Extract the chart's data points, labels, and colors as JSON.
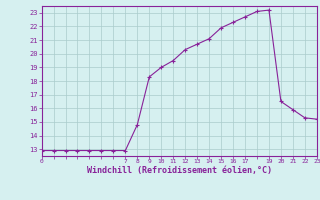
{
  "x": [
    0,
    1,
    2,
    3,
    4,
    5,
    6,
    7,
    8,
    9,
    10,
    11,
    12,
    13,
    14,
    15,
    16,
    17,
    18,
    19,
    20,
    21,
    22,
    23
  ],
  "y": [
    12.9,
    12.9,
    12.9,
    12.9,
    12.9,
    12.9,
    12.9,
    12.9,
    14.8,
    18.3,
    19.0,
    19.5,
    20.3,
    20.7,
    21.1,
    21.9,
    22.3,
    22.7,
    23.1,
    23.2,
    16.5,
    15.9,
    15.3,
    15.2
  ],
  "line_color": "#882299",
  "marker": "+",
  "marker_color": "#882299",
  "background_color": "#d6f0f0",
  "grid_color": "#aacccc",
  "xlabel": "Windchill (Refroidissement éolien,°C)",
  "xlabel_color": "#882299",
  "ylabel_ticks": [
    13,
    14,
    15,
    16,
    17,
    18,
    19,
    20,
    21,
    22,
    23
  ],
  "xtick_labels": [
    "0",
    "",
    "",
    "",
    "",
    "",
    "",
    "7",
    "8",
    "9",
    "10",
    "11",
    "12",
    "13",
    "14",
    "15",
    "16",
    "17",
    "",
    "19",
    "20",
    "21",
    "22",
    "23"
  ],
  "xlim": [
    0,
    23
  ],
  "ylim": [
    12.5,
    23.5
  ]
}
